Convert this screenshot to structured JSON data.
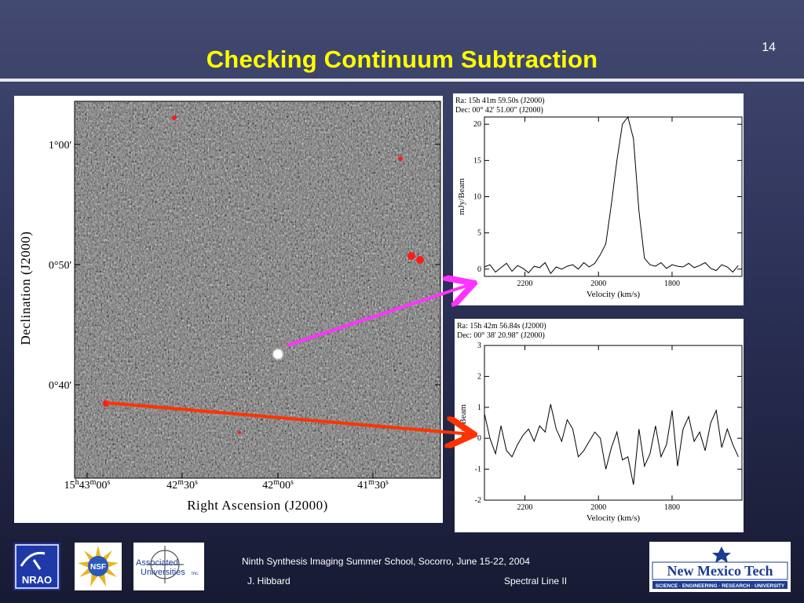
{
  "slide": {
    "title": "Checking Continuum Subtraction",
    "number": "14"
  },
  "footer": {
    "conference": "Ninth Synthesis Imaging Summer School, Socorro, June 15-22, 2004",
    "author": "J. Hibbard",
    "topic": "Spectral Line II"
  },
  "logos": {
    "nrao": "NRAO",
    "nsf": "NSF",
    "aui_line1": "Associated",
    "aui_line2": "Universities",
    "aui_suffix": "Inc.",
    "nmt_name": "New Mexico Tech",
    "nmt_tagline": "SCIENCE · ENGINEERING · RESEARCH · UNIVERSITY"
  },
  "colors": {
    "title": "#ffff00",
    "magenta_arrow": "#ff33ff",
    "red_arrow": "#ff3300",
    "marker": "#ff1a1a"
  },
  "chart_data": [
    {
      "type": "image",
      "description_free": true,
      "xlabel": "Right Ascension (J2000)",
      "ylabel": "Declination (J2000)",
      "x_ticks": [
        "15h43m00s",
        "42m30s",
        "42m00s",
        "41m30s"
      ],
      "y_ticks": [
        "1°00'",
        "0°50'",
        "0°40'"
      ]
    },
    {
      "type": "line",
      "header_ra": "Ra:  15h 41m  59.50s  (J2000)",
      "header_dec": "Dec:  00° 42'  51.00\"  (J2000)",
      "xlabel": "Velocity (km/s)",
      "ylabel": "mJy/Beam",
      "xlim": [
        2310,
        1610
      ],
      "ylim": [
        -1,
        21
      ],
      "x_ticks": [
        2200,
        2000,
        1800
      ],
      "y_ticks": [
        0,
        5,
        10,
        15,
        20
      ],
      "x": [
        2310,
        2295,
        2280,
        2265,
        2250,
        2235,
        2220,
        2205,
        2190,
        2175,
        2160,
        2145,
        2130,
        2115,
        2100,
        2085,
        2070,
        2055,
        2040,
        2025,
        2010,
        1995,
        1980,
        1965,
        1950,
        1935,
        1920,
        1905,
        1890,
        1875,
        1860,
        1845,
        1830,
        1815,
        1800,
        1785,
        1770,
        1755,
        1740,
        1725,
        1710,
        1695,
        1680,
        1665,
        1650,
        1635,
        1620
      ],
      "y": [
        0.3,
        0.6,
        -0.4,
        0.2,
        0.8,
        -0.3,
        0.5,
        0.1,
        -0.5,
        0.4,
        0.2,
        0.9,
        -0.6,
        0.3,
        0.0,
        0.4,
        0.6,
        0.0,
        0.9,
        0.3,
        0.8,
        2.0,
        3.5,
        9.0,
        15.0,
        20.0,
        21.0,
        18.0,
        8.0,
        1.5,
        0.6,
        0.4,
        0.9,
        0.1,
        0.6,
        0.4,
        0.3,
        0.8,
        0.2,
        0.5,
        0.9,
        0.1,
        -0.2,
        0.6,
        0.3,
        -0.4,
        0.5
      ]
    },
    {
      "type": "line",
      "header_ra": "Ra:  15h 42m  56.84s  (J2000)",
      "header_dec": "Dec:  00° 38'  20.98\"  (J2000)",
      "xlabel": "Velocity (km/s)",
      "ylabel": "mJy/Beam",
      "xlim": [
        2310,
        1610
      ],
      "ylim": [
        -2,
        3
      ],
      "x_ticks": [
        2200,
        2000,
        1800
      ],
      "y_ticks": [
        -2,
        -1,
        0,
        1,
        2,
        3
      ],
      "x": [
        2310,
        2295,
        2280,
        2265,
        2250,
        2235,
        2220,
        2205,
        2190,
        2175,
        2160,
        2145,
        2130,
        2115,
        2100,
        2085,
        2070,
        2055,
        2040,
        2025,
        2010,
        1995,
        1980,
        1965,
        1950,
        1935,
        1920,
        1905,
        1890,
        1875,
        1860,
        1845,
        1830,
        1815,
        1800,
        1785,
        1770,
        1755,
        1740,
        1725,
        1710,
        1695,
        1680,
        1665,
        1650,
        1635,
        1620
      ],
      "y": [
        0.8,
        0.0,
        -0.5,
        0.4,
        -0.4,
        -0.6,
        -0.2,
        0.1,
        0.3,
        -0.1,
        0.4,
        0.2,
        1.1,
        0.3,
        -0.1,
        0.6,
        0.3,
        -0.6,
        -0.4,
        -0.1,
        0.2,
        0.0,
        -1.0,
        -0.3,
        0.2,
        -0.7,
        -0.6,
        -1.5,
        0.3,
        -0.9,
        -0.5,
        0.4,
        -0.6,
        -0.2,
        0.9,
        -0.9,
        0.3,
        0.7,
        -0.1,
        0.2,
        -0.4,
        0.5,
        0.9,
        -0.3,
        0.3,
        -0.2,
        -0.6
      ]
    }
  ]
}
